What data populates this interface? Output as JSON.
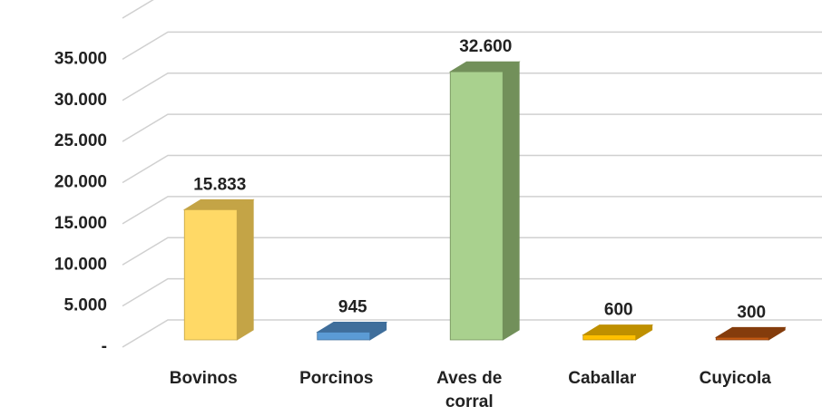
{
  "chart_data": {
    "type": "bar3d",
    "categories": [
      "Bovinos",
      "Porcinos",
      "Aves de corral",
      "Caballar",
      "Cuyicola"
    ],
    "values": [
      15833,
      945,
      32600,
      600,
      300
    ],
    "value_labels": [
      "15.833",
      "945",
      "32.600",
      "600",
      "300"
    ],
    "colors": [
      "#FFD966",
      "#5B9BD5",
      "#A9D18E",
      "#FFC000",
      "#C55A11"
    ],
    "side_colors": [
      "#C4A446",
      "#3F6E9B",
      "#72905A",
      "#BF9000",
      "#843C0C"
    ],
    "ylim": [
      0,
      40000
    ],
    "yticks": [
      {
        "value": 0,
        "label": "-"
      },
      {
        "value": 5000,
        "label": "5.000"
      },
      {
        "value": 10000,
        "label": "10.000"
      },
      {
        "value": 15000,
        "label": "15.000"
      },
      {
        "value": 20000,
        "label": "20.000"
      },
      {
        "value": 25000,
        "label": "25.000"
      },
      {
        "value": 30000,
        "label": "30.000"
      },
      {
        "value": 35000,
        "label": "35.000"
      }
    ],
    "grid": true
  }
}
